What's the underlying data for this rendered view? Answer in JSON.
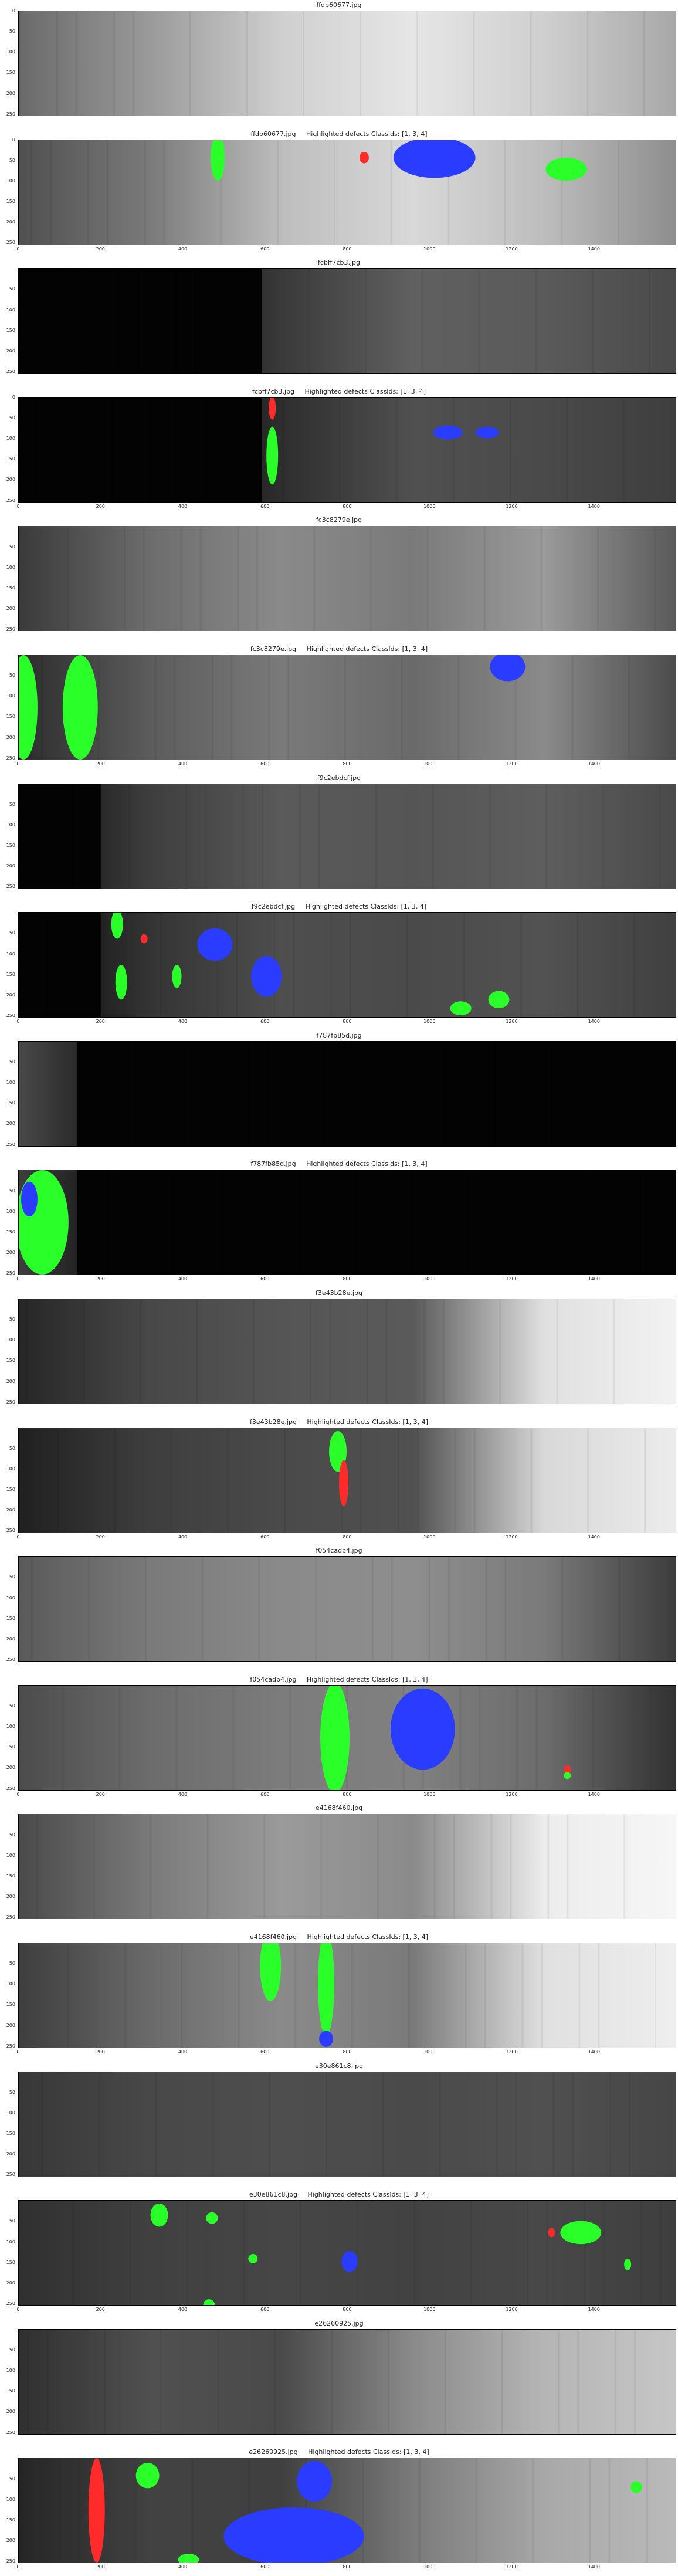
{
  "x_ticks": [
    "0",
    "200",
    "400",
    "600",
    "800",
    "1000",
    "1200",
    "1400"
  ],
  "y_ticks": [
    "50",
    "100",
    "150",
    "200",
    "250"
  ],
  "y_ticks_full": [
    "0",
    "50",
    "100",
    "150",
    "200",
    "250"
  ],
  "colors": {
    "class1": "#ff2a2a",
    "class3": "#2a3cff",
    "class4": "#2aff2a"
  },
  "panels": [
    {
      "title": "ffdb60677.jpg",
      "kind": "raw",
      "y0": true
    },
    {
      "title": "ffdb60677.jpg     Highlighted defects ClassIds: [1, 3, 4]",
      "kind": "mask",
      "y0": true
    },
    {
      "title": "fcbff7cb3.jpg",
      "kind": "raw"
    },
    {
      "title": "fcbff7cb3.jpg     Highlighted defects ClassIds: [1, 3, 4]",
      "kind": "mask",
      "y0": true
    },
    {
      "title": "fc3c8279e.jpg",
      "kind": "raw"
    },
    {
      "title": "fc3c8279e.jpg     Highlighted defects ClassIds: [1, 3, 4]",
      "kind": "mask"
    },
    {
      "title": "f9c2ebdcf.jpg",
      "kind": "raw"
    },
    {
      "title": "f9c2ebdcf.jpg     Highlighted defects ClassIds: [1, 3, 4]",
      "kind": "mask"
    },
    {
      "title": "f787fb85d.jpg",
      "kind": "raw"
    },
    {
      "title": "f787fb85d.jpg     Highlighted defects ClassIds: [1, 3, 4]",
      "kind": "mask"
    },
    {
      "title": "f3e43b28e.jpg",
      "kind": "raw"
    },
    {
      "title": "f3e43b28e.jpg     Highlighted defects ClassIds: [1, 3, 4]",
      "kind": "mask"
    },
    {
      "title": "f054cadb4.jpg",
      "kind": "raw"
    },
    {
      "title": "f054cadb4.jpg     Highlighted defects ClassIds: [1, 3, 4]",
      "kind": "mask"
    },
    {
      "title": "e4168f460.jpg",
      "kind": "raw"
    },
    {
      "title": "e4168f460.jpg     Highlighted defects ClassIds: [1, 3, 4]",
      "kind": "mask"
    },
    {
      "title": "e30e861c8.jpg",
      "kind": "raw"
    },
    {
      "title": "e30e861c8.jpg     Highlighted defects ClassIds: [1, 3, 4]",
      "kind": "mask"
    },
    {
      "title": "e26260925.jpg",
      "kind": "raw"
    },
    {
      "title": "e26260925.jpg     Highlighted defects ClassIds: [1, 3, 4]",
      "kind": "mask"
    }
  ]
}
